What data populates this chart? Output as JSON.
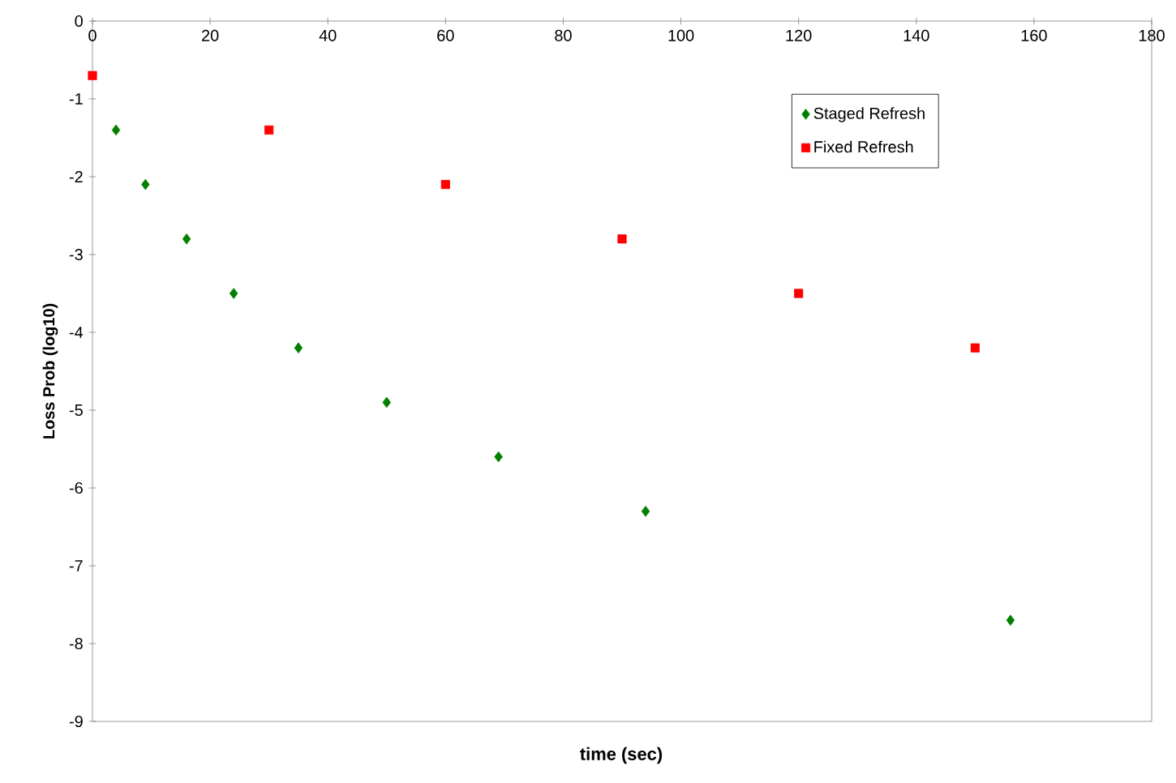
{
  "chart_data": {
    "type": "scatter",
    "xlabel": "time (sec)",
    "ylabel": "Loss Prob (log10)",
    "xlim": [
      0,
      180
    ],
    "ylim": [
      -9,
      0
    ],
    "xticks": [
      0,
      20,
      40,
      60,
      80,
      100,
      120,
      140,
      160,
      180
    ],
    "yticks": [
      -9,
      -8,
      -7,
      -6,
      -5,
      -4,
      -3,
      -2,
      -1,
      0
    ],
    "legend": "top right",
    "series": [
      {
        "name": "Staged Refresh",
        "color": "#008000",
        "marker": "diamond",
        "x": [
          4,
          9,
          16,
          24,
          35,
          50,
          69,
          94,
          156
        ],
        "values": [
          -1.4,
          -2.1,
          -2.8,
          -3.5,
          -4.2,
          -4.9,
          -5.6,
          -6.3,
          -7.7
        ]
      },
      {
        "name": "Fixed Refresh",
        "color": "#ff0000",
        "marker": "square",
        "x": [
          0,
          30,
          60,
          90,
          120,
          150
        ],
        "values": [
          -0.7,
          -1.4,
          -2.1,
          -2.8,
          -3.5,
          -4.2
        ]
      }
    ]
  }
}
